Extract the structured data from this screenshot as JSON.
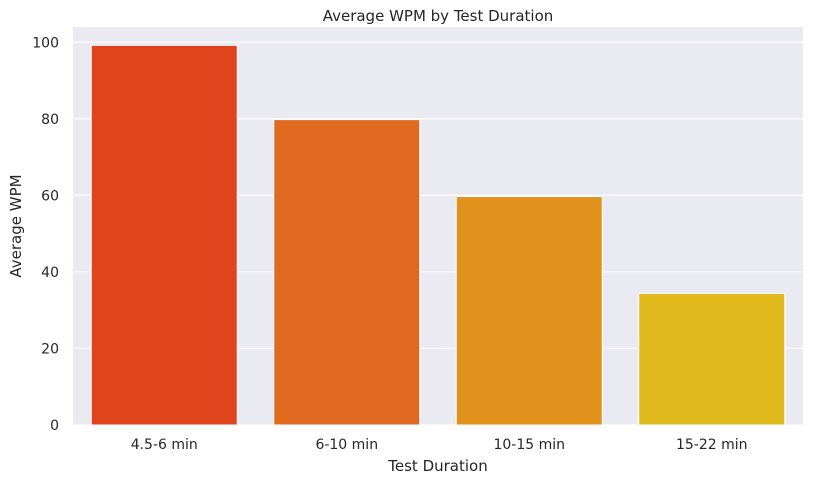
{
  "chart_data": {
    "type": "bar",
    "title": "Average WPM by Test Duration",
    "xlabel": "Test Duration",
    "ylabel": "Average WPM",
    "categories": [
      "4.5-6 min",
      "6-10 min",
      "10-15 min",
      "15-22 min"
    ],
    "values": [
      99.2,
      79.8,
      59.7,
      34.4
    ],
    "ylim": [
      0,
      104
    ],
    "yticks": [
      0,
      20,
      40,
      60,
      80,
      100
    ],
    "grid": true,
    "legend": "none",
    "colors": [
      "#e0441c",
      "#e06a1f",
      "#e0921d",
      "#e0b91d"
    ],
    "background": "#eaeaf2"
  }
}
